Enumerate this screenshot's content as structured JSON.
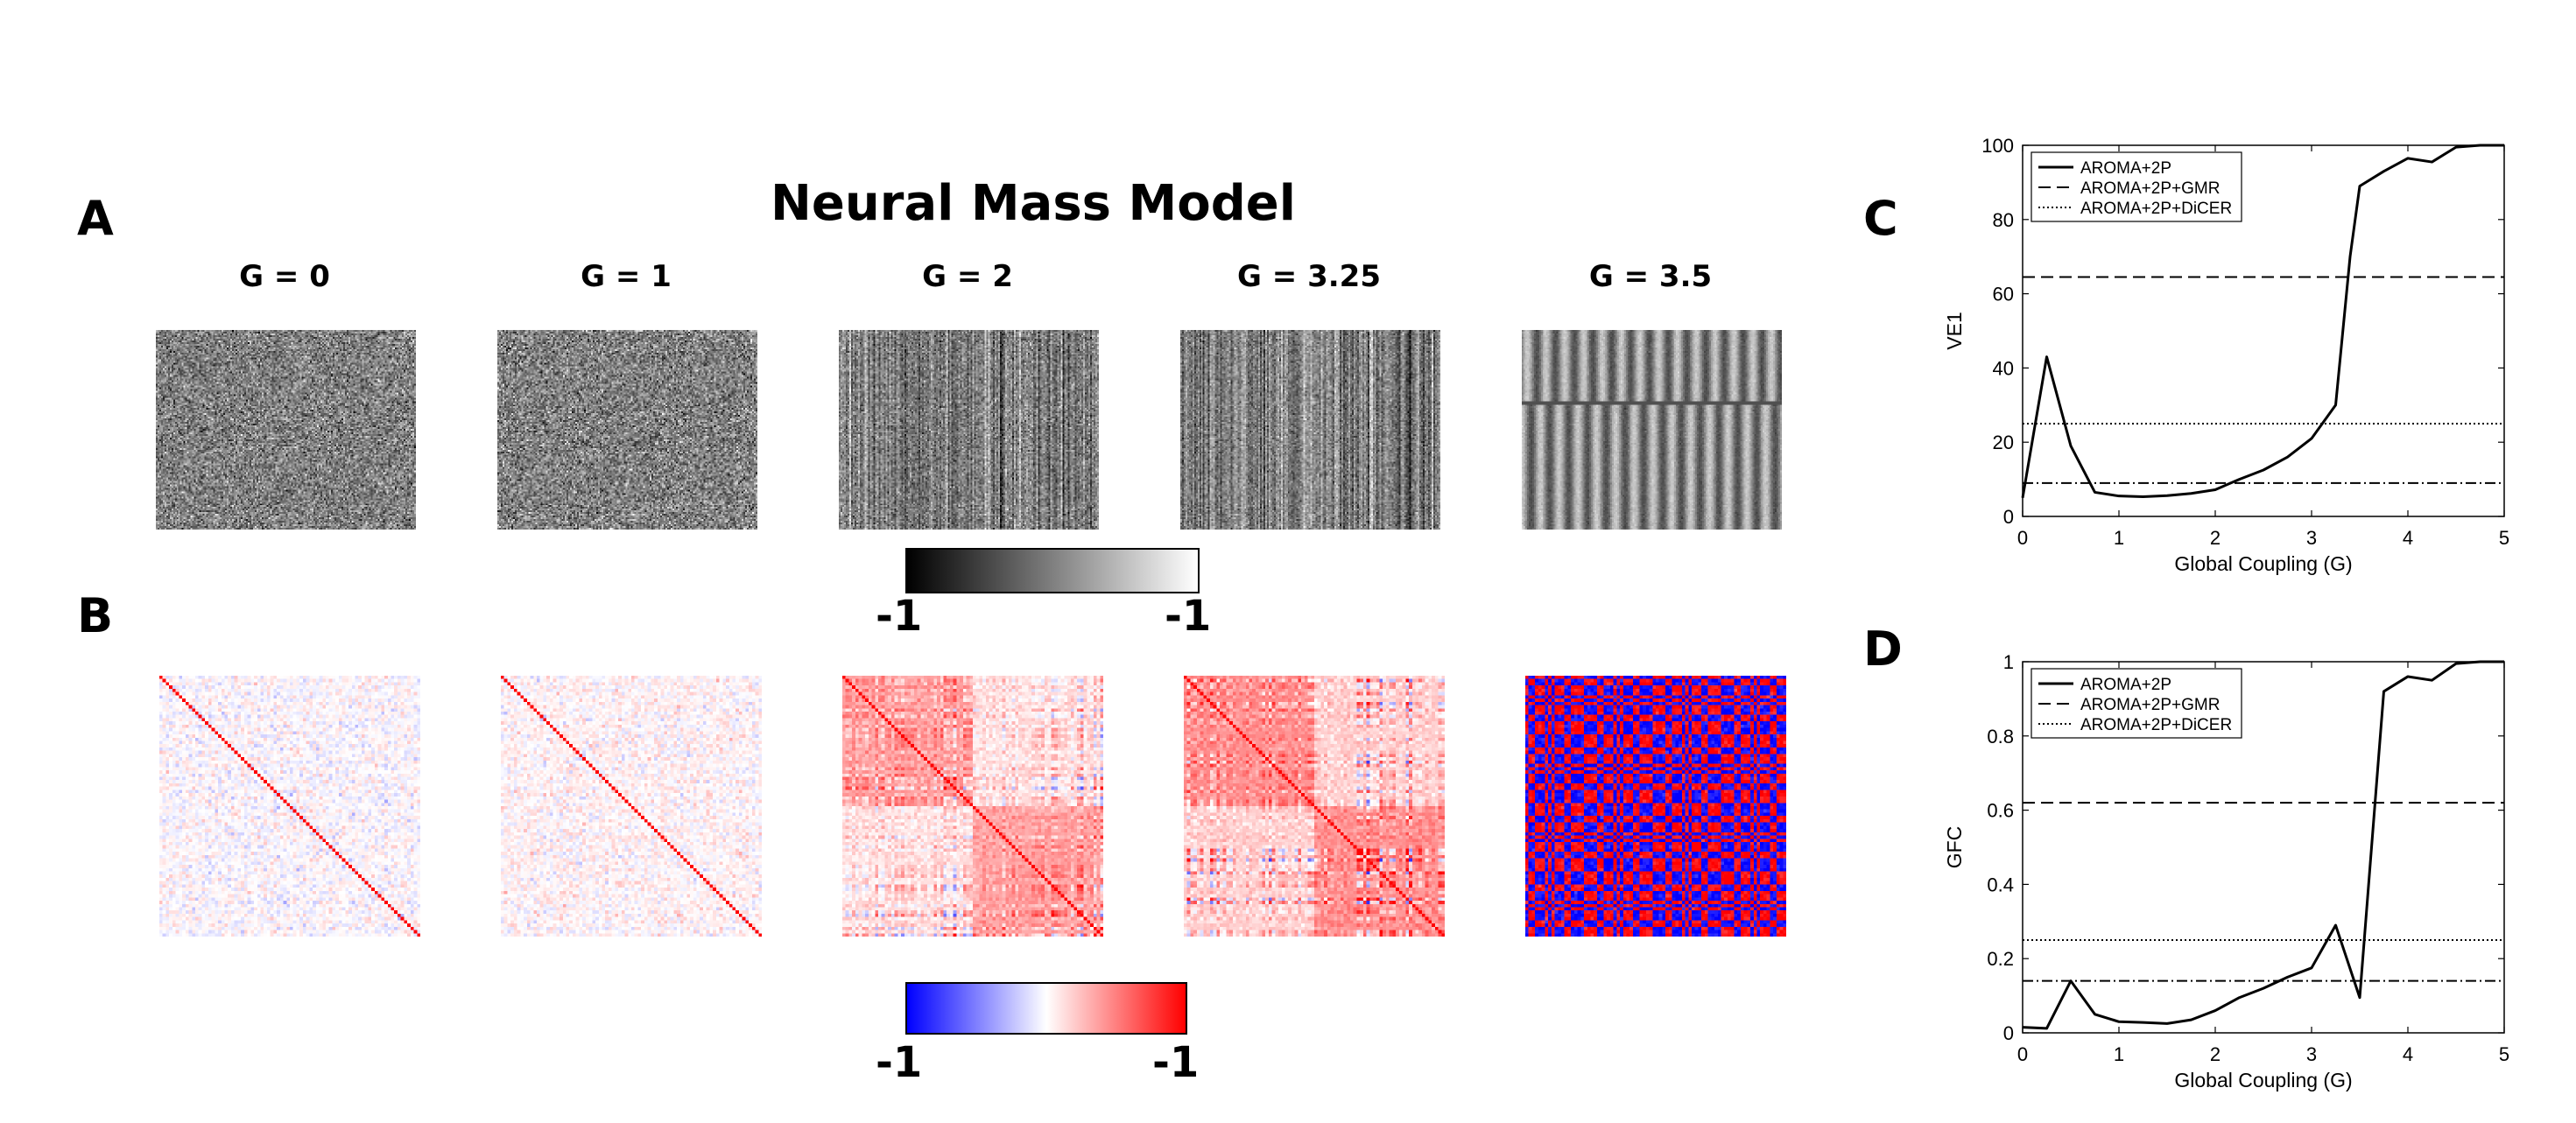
{
  "panel_letters": [
    "A",
    "B",
    "C",
    "D"
  ],
  "main_title": "Neural Mass Model",
  "g_labels": [
    "G = 0",
    "G = 1",
    "G = 2",
    "G = 3.25",
    "G = 3.5"
  ],
  "gray_colorbar": {
    "min_label": "-1",
    "max_label": "-1",
    "colors": [
      "#000000",
      "#ffffff"
    ]
  },
  "rwb_colorbar": {
    "min_label": "-1",
    "max_label": "-1",
    "colors": [
      "#0000ff",
      "#ffffff",
      "#ff0000"
    ]
  },
  "chart_data": [
    {
      "type": "line",
      "panel": "C",
      "xlabel": "Global Coupling (G)",
      "ylabel": "VE1",
      "xlim": [
        0,
        5
      ],
      "ylim": [
        0,
        100
      ],
      "xticks": [
        0,
        1,
        2,
        3,
        4,
        5
      ],
      "yticks": [
        0,
        20,
        40,
        60,
        80,
        100
      ],
      "legend_position": "top-left",
      "series": [
        {
          "name": "AROMA+2P",
          "style": "solid",
          "x": [
            0,
            0.25,
            0.5,
            0.75,
            1,
            1.25,
            1.5,
            1.75,
            2,
            2.25,
            2.5,
            2.75,
            3,
            3.25,
            3.4,
            3.5,
            3.75,
            4,
            4.25,
            4.5,
            4.75,
            5
          ],
          "y": [
            5,
            43,
            19,
            6.5,
            5.5,
            5.3,
            5.6,
            6.2,
            7.2,
            10,
            12.5,
            16,
            21,
            30,
            70,
            89,
            93,
            96.5,
            95.5,
            99.5,
            100,
            100
          ]
        },
        {
          "name": "AROMA+2P+GMR",
          "style": "dashed",
          "x": [
            0,
            5
          ],
          "y": [
            64.5,
            64.5
          ]
        },
        {
          "name": "AROMA+2P+DiCER",
          "style": "dotted",
          "x": [
            0,
            5
          ],
          "y": [
            25,
            25
          ]
        },
        {
          "name": "",
          "style": "dashdot",
          "x": [
            0,
            5
          ],
          "y": [
            9,
            9
          ]
        }
      ]
    },
    {
      "type": "line",
      "panel": "D",
      "xlabel": "Global Coupling (G)",
      "ylabel": "GFC",
      "xlim": [
        0,
        5
      ],
      "ylim": [
        0,
        1
      ],
      "xticks": [
        0,
        1,
        2,
        3,
        4,
        5
      ],
      "yticks": [
        0,
        0.2,
        0.4,
        0.6,
        0.8,
        1
      ],
      "legend_position": "top-left",
      "series": [
        {
          "name": "AROMA+2P",
          "style": "solid",
          "x": [
            0,
            0.25,
            0.5,
            0.75,
            1,
            1.25,
            1.5,
            1.75,
            2,
            2.25,
            2.5,
            2.75,
            3,
            3.25,
            3.5,
            3.75,
            4,
            4.25,
            4.5,
            4.75,
            5
          ],
          "y": [
            0.015,
            0.012,
            0.14,
            0.05,
            0.03,
            0.028,
            0.025,
            0.035,
            0.06,
            0.095,
            0.12,
            0.15,
            0.175,
            0.29,
            0.095,
            0.92,
            0.96,
            0.95,
            0.995,
            1,
            1
          ]
        },
        {
          "name": "AROMA+2P+GMR",
          "style": "dashed",
          "x": [
            0,
            5
          ],
          "y": [
            0.62,
            0.62
          ]
        },
        {
          "name": "AROMA+2P+DiCER",
          "style": "dotted",
          "x": [
            0,
            5
          ],
          "y": [
            0.25,
            0.25
          ]
        },
        {
          "name": "",
          "style": "dashdot",
          "x": [
            0,
            5
          ],
          "y": [
            0.14,
            0.14
          ]
        }
      ]
    }
  ]
}
